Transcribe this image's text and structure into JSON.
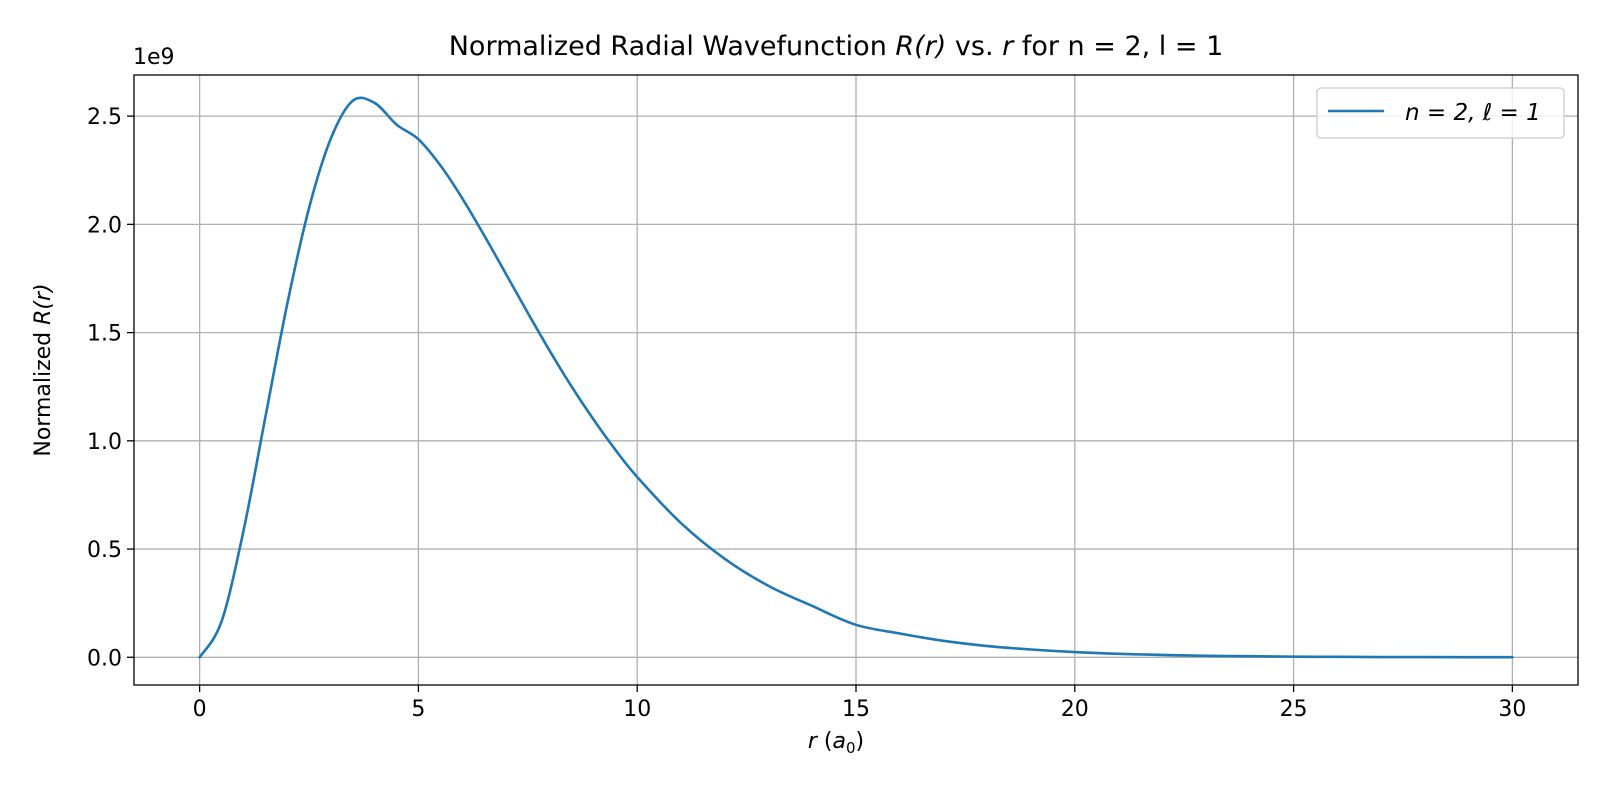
{
  "chart_data": {
    "type": "line",
    "title": {
      "prefix": "Normalized Radial Wavefunction ",
      "math1": "R(r)",
      "mid": " vs. ",
      "math2": "r",
      "suffix": " for n = 2, l = 1"
    },
    "xlabel": {
      "var": "r",
      "unit_open": " (",
      "unit_base": "a",
      "unit_sub": "0",
      "unit_close": ")"
    },
    "ylabel": {
      "text": "Normalized ",
      "math": "R(r)"
    },
    "y_scale_label": "1e9",
    "xlim": [
      -1.5,
      31.5
    ],
    "ylim": [
      -0.128,
      2.69
    ],
    "x_ticks": [
      0,
      5,
      10,
      15,
      20,
      25,
      30
    ],
    "x_tick_labels": [
      "0",
      "5",
      "10",
      "15",
      "20",
      "25",
      "30"
    ],
    "y_ticks": [
      0.0,
      0.5,
      1.0,
      1.5,
      2.0,
      2.5
    ],
    "y_tick_labels": [
      "0.0",
      "0.5",
      "1.0",
      "1.5",
      "2.0",
      "2.5"
    ],
    "grid": true,
    "legend_position": "top-right",
    "series": [
      {
        "name": "n = 2, ℓ = 1",
        "color": "#1f77b4",
        "x": [
          0,
          0.5,
          1,
          1.5,
          2,
          2.5,
          3,
          3.5,
          4,
          4.5,
          5,
          5.5,
          6,
          6.5,
          7,
          7.5,
          8,
          8.5,
          9,
          9.5,
          10,
          11,
          12,
          13,
          14,
          15,
          16,
          17,
          18,
          19,
          20,
          21,
          22,
          23,
          24,
          25,
          26,
          27,
          28,
          29,
          30
        ],
        "y": [
          0,
          0.165,
          0.582,
          1.107,
          1.63,
          2.075,
          2.397,
          2.571,
          2.561,
          2.461,
          2.393,
          2.273,
          2.121,
          1.95,
          1.771,
          1.591,
          1.416,
          1.251,
          1.099,
          0.959,
          0.833,
          0.62,
          0.455,
          0.33,
          0.237,
          0.15,
          0.11,
          0.076,
          0.052,
          0.036,
          0.024,
          0.016,
          0.011,
          0.007,
          0.005,
          0.003,
          0.002,
          0.001,
          0.001,
          0.0005,
          0.0003
        ]
      }
    ]
  }
}
